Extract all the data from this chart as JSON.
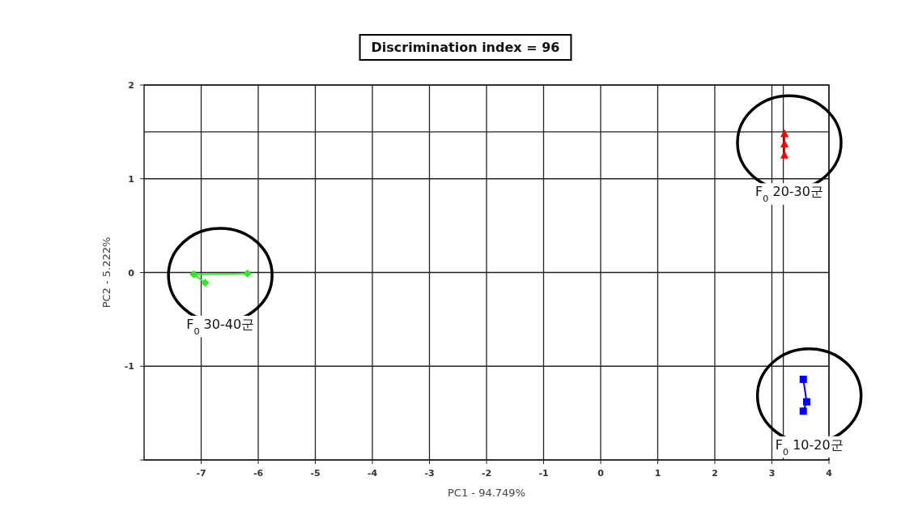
{
  "chart_data": {
    "type": "line",
    "title": "Discrimination index = 96",
    "xlabel": "PC1 - 94.749%",
    "ylabel": "PC2 - 5.222%",
    "xlim": [
      -8,
      4
    ],
    "ylim": [
      -2,
      2
    ],
    "xticks": [
      -7,
      -6,
      -5,
      -4,
      -3,
      -2,
      -1,
      0,
      1,
      2,
      3,
      4
    ],
    "yticks": [
      {
        "value": -2,
        "label": null
      },
      -1,
      0,
      1,
      2
    ],
    "grid": true,
    "legend": false,
    "ref_lines": [
      {
        "axis": "x",
        "value": 3.2
      },
      {
        "axis": "y",
        "value": 1.5
      }
    ],
    "series": [
      {
        "name": "F$_{0}$ 30-40군",
        "color": "#22ee22",
        "marker": "diamond",
        "x": [
          -6.93,
          -7.13,
          -6.19
        ],
        "values": [
          -0.11,
          -0.02,
          -0.01
        ]
      },
      {
        "name": "F$_{0}$ 20-30군",
        "color": "#ff0000",
        "marker": "triangle",
        "x": [
          3.22,
          3.22,
          3.22
        ],
        "values": [
          1.48,
          1.37,
          1.25
        ]
      },
      {
        "name": "F$_{0}$ 10-20군",
        "color": "#0000ff",
        "marker": "square",
        "x": [
          3.55,
          3.61,
          3.55
        ],
        "values": [
          -1.14,
          -1.38,
          -1.48
        ]
      }
    ]
  }
}
